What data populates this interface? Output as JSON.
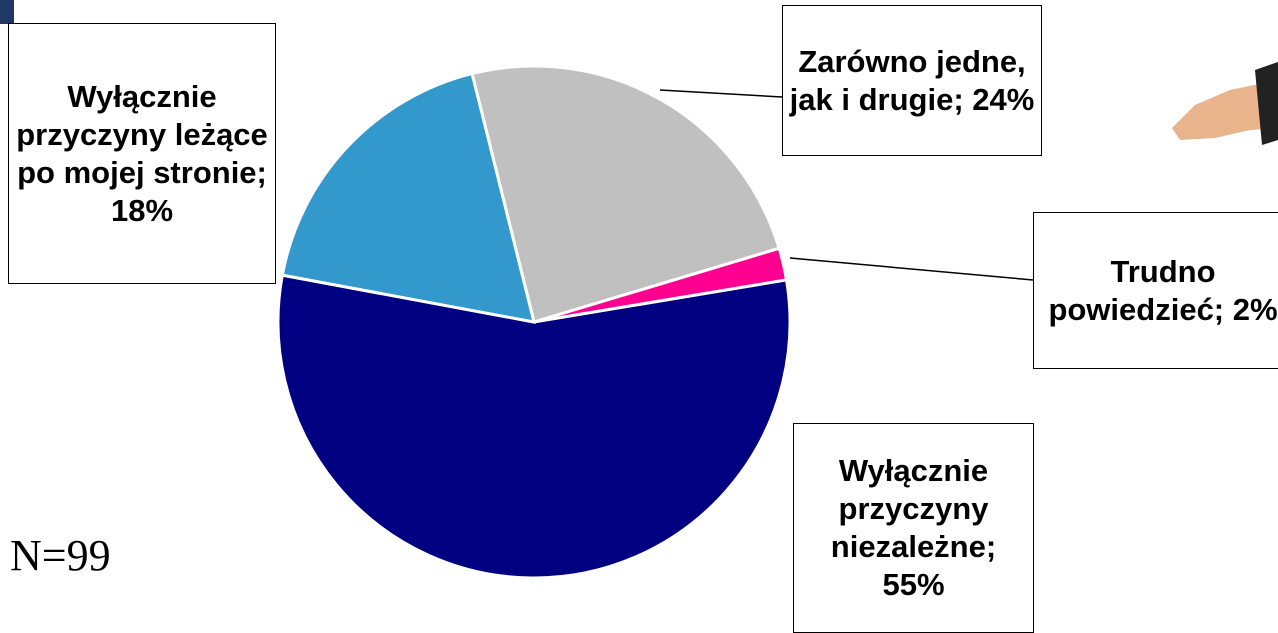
{
  "chart_data": {
    "type": "pie",
    "labels": [
      "Zarówno jedne, jak i drugie; 24%",
      "Trudno powiedzieć; 2%",
      "Wyłącznie przyczyny niezależne; 55%",
      "Wyłącznie przyczyny leżące po mojej stronie; 18%"
    ],
    "values": [
      24,
      2,
      55,
      18
    ],
    "colors": [
      "#c0c0c0",
      "#ff0090",
      "#000080",
      "#3399cc"
    ],
    "annotation": "N=99"
  }
}
